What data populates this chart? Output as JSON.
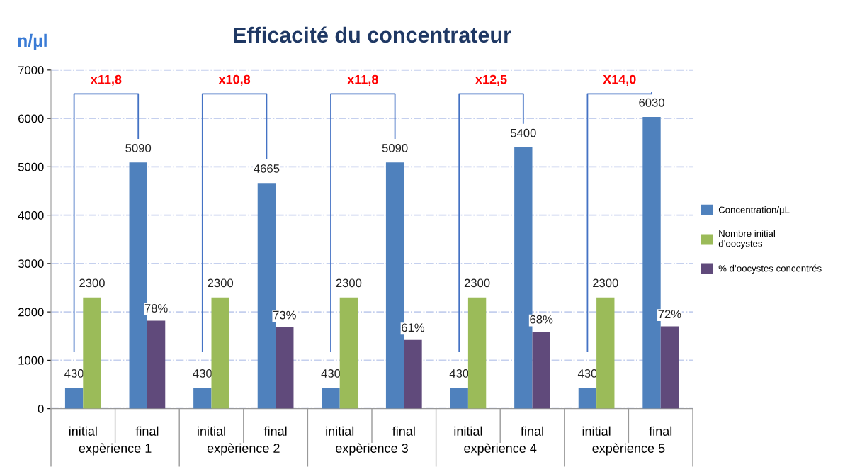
{
  "chart_data": {
    "type": "bar",
    "title": "Efficacité du concentrateur",
    "ylabel": "n/µl",
    "categories": [
      "initial",
      "final",
      "initial",
      "final",
      "initial",
      "final",
      "initial",
      "final",
      "initial",
      "final"
    ],
    "series": [
      {
        "name": "Concentration/µL",
        "color": "#4f81bd",
        "values": [
          430,
          5090,
          430,
          4665,
          430,
          5090,
          430,
          5400,
          430,
          6030
        ],
        "value_labels": [
          "430",
          "5090",
          "430",
          "4665",
          "430",
          "5090",
          "430",
          "5400",
          "430",
          "6030"
        ]
      },
      {
        "name": "Nombre initial\nd’oocystes",
        "color": "#9bbb59",
        "values": [
          2300,
          null,
          2300,
          null,
          2300,
          null,
          2300,
          null,
          2300,
          null
        ],
        "value_labels": [
          "2300",
          null,
          "2300",
          null,
          "2300",
          null,
          "2300",
          null,
          "2300",
          null
        ]
      },
      {
        "name": "% d’oocystes concentrés",
        "color": "#604a7b",
        "values": [
          null,
          1820,
          null,
          1680,
          null,
          1420,
          null,
          1590,
          null,
          1700
        ]
      }
    ],
    "annotations": [
      "expèrience 1",
      "expèrience 2",
      "expèrience 3",
      "expèrience 4",
      "expèrience 5",
      "x11,8",
      "x10,8",
      "x11,8",
      "x12,5",
      "X14,0",
      "78%",
      "73%",
      "61%",
      "68%",
      "72%"
    ],
    "ylim": [
      0,
      7000
    ],
    "yticks": [
      0,
      1000,
      2000,
      3000,
      4000,
      5000,
      6000,
      7000
    ],
    "grid": "y",
    "legend": "right"
  }
}
